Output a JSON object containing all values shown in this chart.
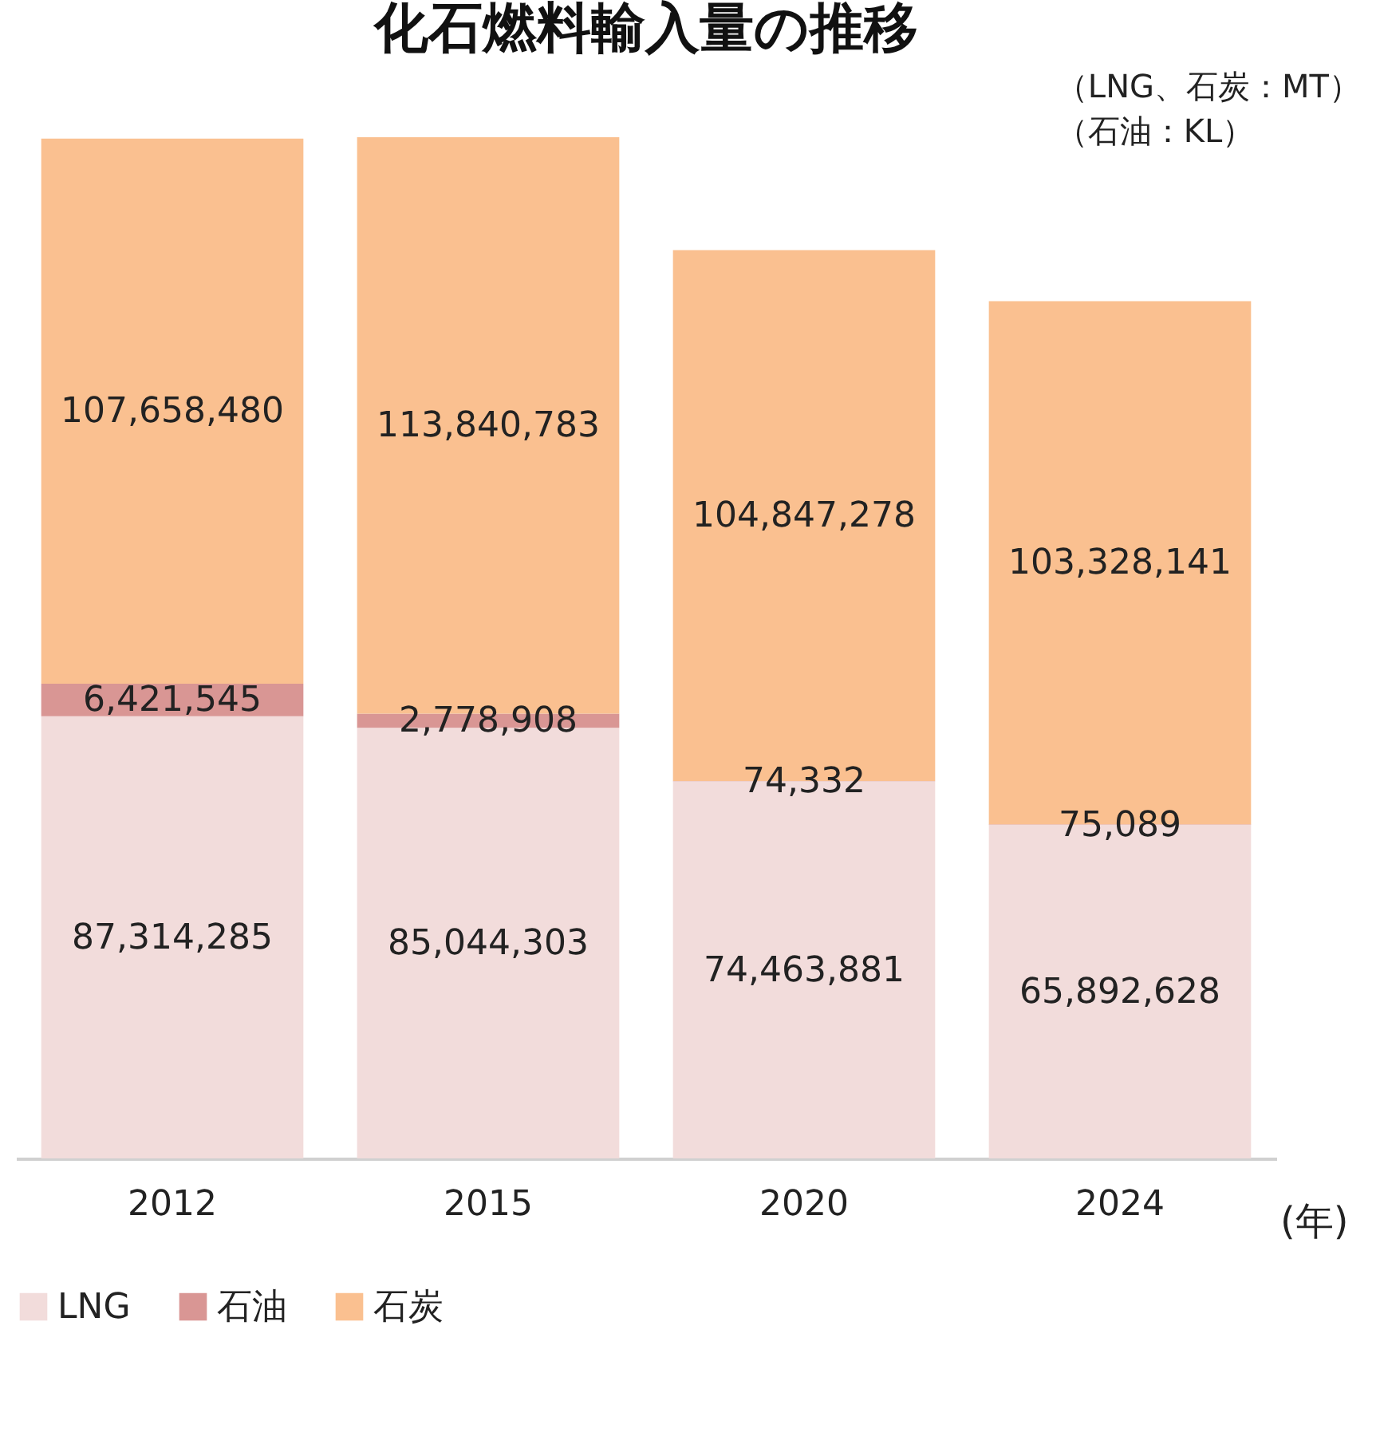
{
  "chart_data": {
    "type": "bar",
    "title": "化石燃料輸入量の推移",
    "xlabel": "(年)",
    "stacked": true,
    "legend": "bottom",
    "categories": [
      "2012",
      "2015",
      "2020",
      "2024"
    ],
    "series": [
      {
        "name": "LNG",
        "color": "#f2dcdb",
        "values": [
          87314285,
          85044303,
          74463881,
          65892628
        ],
        "value_labels": [
          "87,314,285",
          "85,044,303",
          "74,463,881",
          "65,892,628"
        ]
      },
      {
        "name": "石油",
        "color": "#d99694",
        "values": [
          6421545,
          2778908,
          74332,
          75089
        ],
        "value_labels": [
          "6,421,545",
          "2,778,908",
          "74,332",
          "75,089"
        ]
      },
      {
        "name": "石炭",
        "color": "#fac090",
        "values": [
          107658480,
          113840783,
          104847278,
          103328141
        ],
        "value_labels": [
          "107,658,480",
          "113,840,783",
          "104,847,278",
          "103,328,141"
        ]
      }
    ],
    "annotations": [
      "（LNG、石炭：MT）",
      "（石油：KL）"
    ]
  }
}
